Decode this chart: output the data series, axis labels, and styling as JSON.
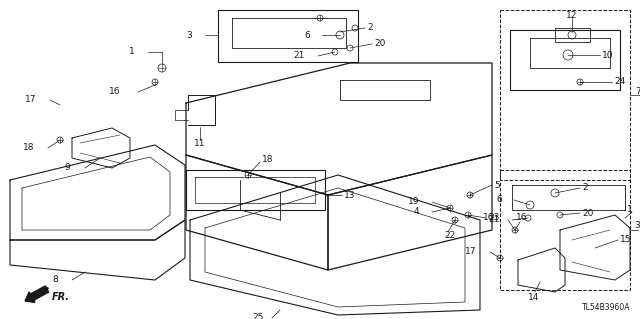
{
  "bg_color": "#ffffff",
  "diagram_code": "TL54B3960A",
  "fig_width": 6.4,
  "fig_height": 3.19,
  "dpi": 100,
  "line_color": "#1a1a1a",
  "label_fontsize": 6.5
}
